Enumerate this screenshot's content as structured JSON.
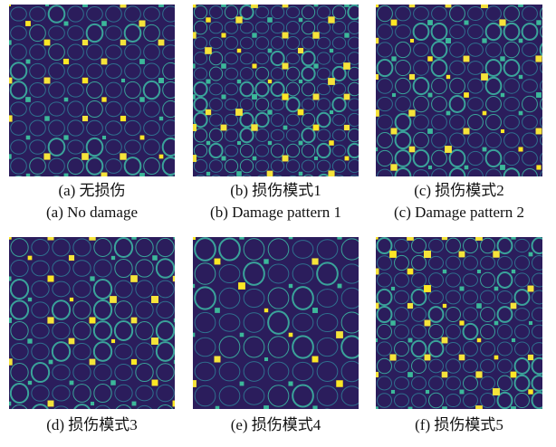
{
  "panels": [
    {
      "caption_zh": "(a)  无损伤",
      "caption_en": "(a)  No damage"
    },
    {
      "caption_zh": "(b)  损伤模式1",
      "caption_en": "(b)  Damage pattern 1"
    },
    {
      "caption_zh": "(c)  损伤模式2",
      "caption_en": "(c)  Damage pattern 2"
    },
    {
      "caption_zh": "(d)  损伤模式3"
    },
    {
      "caption_zh": "(e)  损伤模式4"
    },
    {
      "caption_zh": "(f)  损伤模式5"
    }
  ]
}
